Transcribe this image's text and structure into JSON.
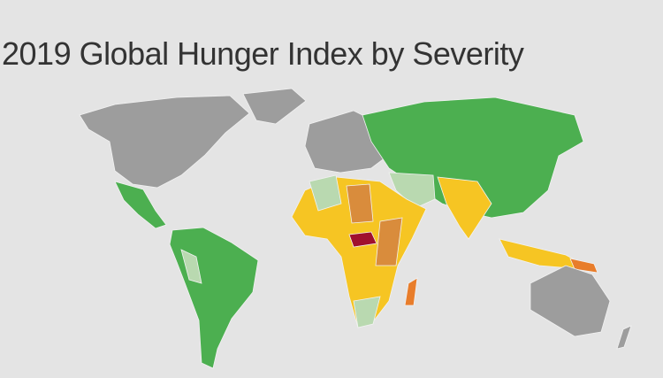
{
  "header": {
    "title": "2019 Global Hunger Index by Severity"
  }
}
